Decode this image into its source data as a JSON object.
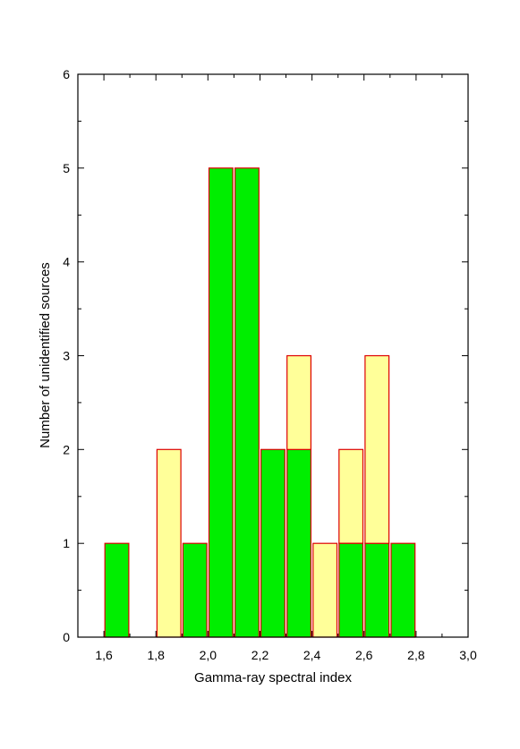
{
  "chart_data": {
    "type": "bar",
    "stacked": true,
    "xlabel": "Gamma-ray spectral index",
    "ylabel": "Number of unidentified sources",
    "xlim": [
      1.5,
      3.0
    ],
    "ylim": [
      0,
      6
    ],
    "bin_width": 0.1,
    "x_ticks": [
      "1,6",
      "1,8",
      "2,0",
      "2,2",
      "2,4",
      "2,6",
      "2,8",
      "3,0"
    ],
    "x_tick_values": [
      1.6,
      1.8,
      2.0,
      2.2,
      2.4,
      2.6,
      2.8,
      3.0
    ],
    "y_ticks": [
      "0",
      "1",
      "2",
      "3",
      "4",
      "5",
      "6"
    ],
    "y_tick_values": [
      0,
      1,
      2,
      3,
      4,
      5,
      6
    ],
    "x": [
      1.65,
      1.85,
      1.95,
      2.05,
      2.15,
      2.25,
      2.35,
      2.45,
      2.55,
      2.65,
      2.75
    ],
    "series": [
      {
        "values": [
          1,
          0,
          1,
          5,
          5,
          2,
          2,
          0,
          1,
          1,
          1
        ],
        "color": "#00ee00"
      },
      {
        "values": [
          0,
          2,
          0,
          0,
          0,
          0,
          1,
          1,
          1,
          2,
          0
        ],
        "color": "#ffff99"
      }
    ],
    "bar_edge_color": "#dd0000",
    "grid": false,
    "legend": "none"
  }
}
